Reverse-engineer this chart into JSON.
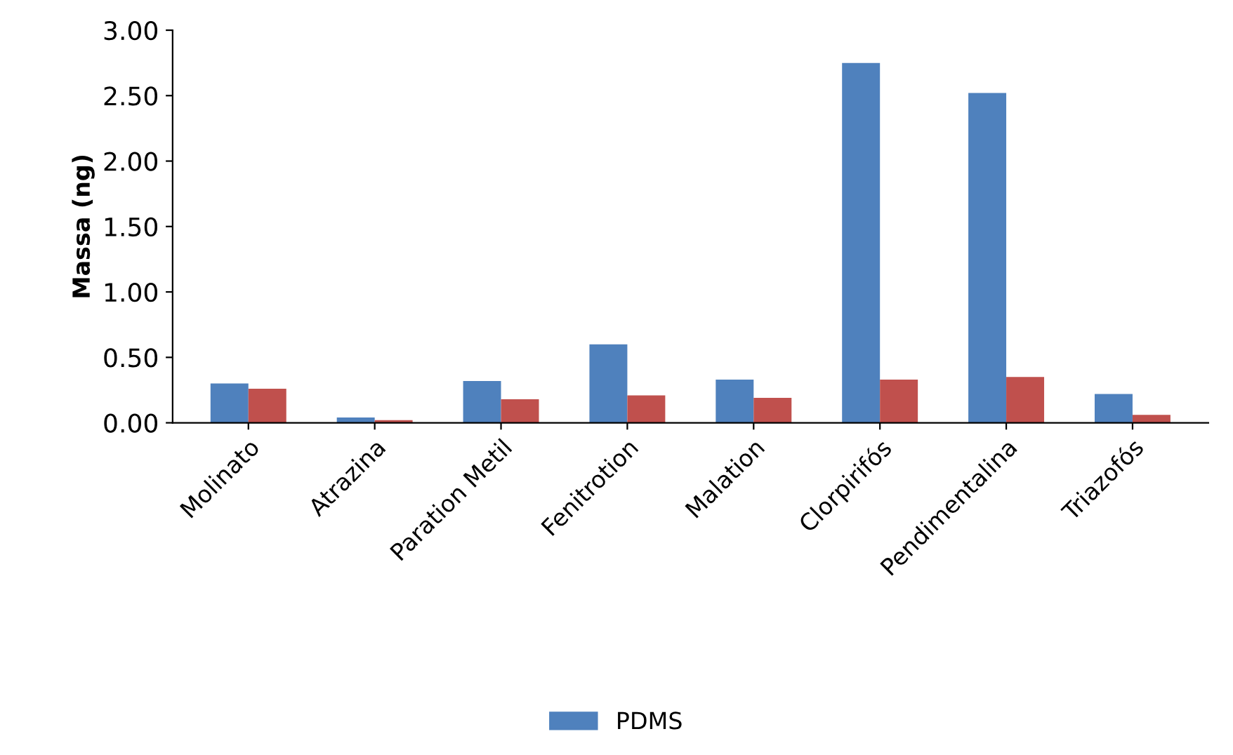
{
  "chart_data": {
    "type": "bar",
    "ylabel": "Massa (ng)",
    "categories": [
      "Molinato",
      "Atrazina",
      "Paration Metil",
      "Fenitrotion",
      "Malation",
      "Clorpirifós",
      "Pendimentalina",
      "Triazofós"
    ],
    "series": [
      {
        "name": "PDMS",
        "color": "#4f81bd",
        "values": [
          0.3,
          0.04,
          0.32,
          0.6,
          0.33,
          2.75,
          2.52,
          0.22
        ]
      },
      {
        "color": "#c0504d",
        "values": [
          0.26,
          0.02,
          0.18,
          0.21,
          0.19,
          0.33,
          0.35,
          0.06
        ]
      }
    ],
    "ylim": [
      0,
      3
    ],
    "yticks": [
      {
        "value": 0,
        "label": "0.00"
      },
      {
        "value": 0.5,
        "label": "0.50"
      },
      {
        "value": 1,
        "label": "1.00"
      },
      {
        "value": 1.5,
        "label": "1.50"
      },
      {
        "value": 2,
        "label": "2.00"
      },
      {
        "value": 2.5,
        "label": "2.50"
      },
      {
        "value": 3,
        "label": "3.00"
      }
    ],
    "grid": false,
    "legend": "bottom"
  }
}
